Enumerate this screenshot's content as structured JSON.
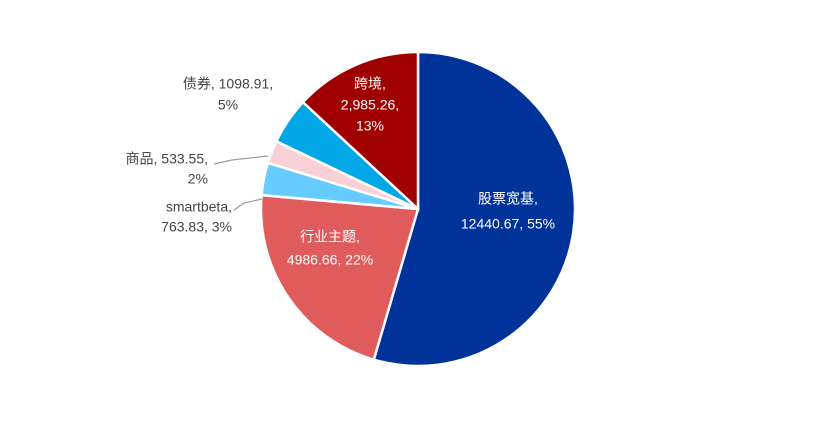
{
  "chart_data": {
    "type": "pie",
    "categories": [
      "股票宽基",
      "行业主题",
      "smartbeta",
      "商品",
      "债券",
      "跨境"
    ],
    "values": [
      12440.67,
      4986.66,
      763.83,
      533.55,
      1098.91,
      2985.26
    ],
    "labels": [
      [
        "股票宽基,",
        "12440.67, 55%"
      ],
      [
        "行业主题,",
        "4986.66, 22%"
      ],
      [
        "smartbeta,",
        "763.83, 3%"
      ],
      [
        "商品, 533.55,",
        "2%"
      ],
      [
        "债券, 1098.91,",
        "5%"
      ],
      [
        "跨境,",
        "2,985.26,",
        "13%"
      ]
    ],
    "colors": [
      "#003399",
      "#e05c5c",
      "#66ccff",
      "#f8d0d6",
      "#00a6e6",
      "#a00000"
    ]
  }
}
